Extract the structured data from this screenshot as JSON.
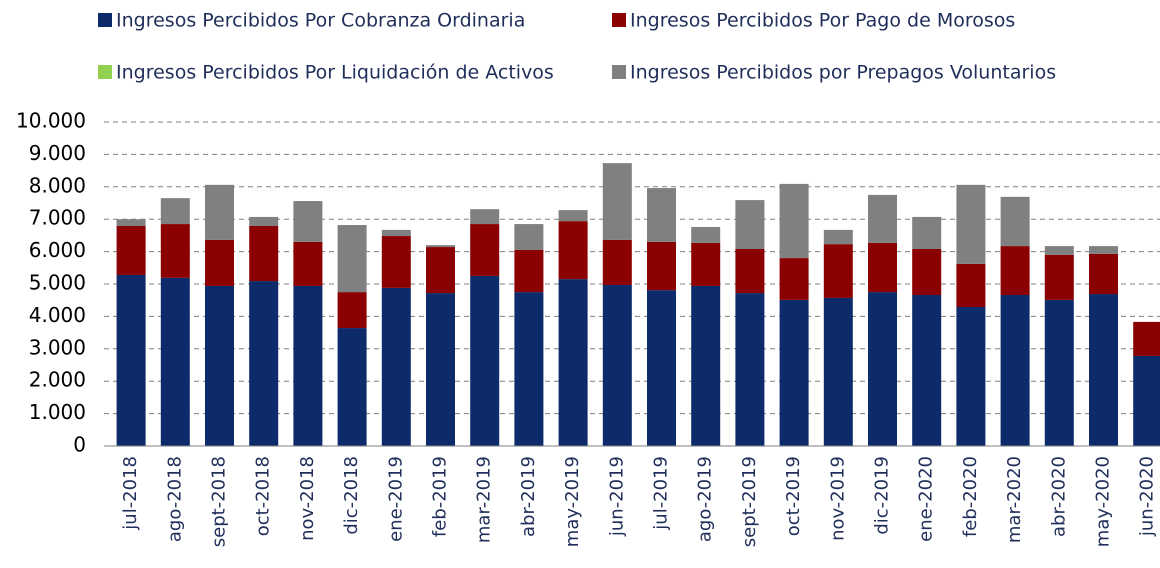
{
  "chart_data": {
    "type": "stacked_bar",
    "categories": [
      "jul-2018",
      "ago-2018",
      "sept-2018",
      "oct-2018",
      "nov-2018",
      "dic-2018",
      "ene-2019",
      "feb-2019",
      "mar-2019",
      "abr-2019",
      "may-2019",
      "jun-2019",
      "jul-2019",
      "ago-2019",
      "sept-2019",
      "oct-2019",
      "nov-2019",
      "dic-2019",
      "ene-2020",
      "feb-2020",
      "mar-2020",
      "abr-2020",
      "may-2020",
      "jun-2020"
    ],
    "series": [
      {
        "name": "Ingresos Percibidos Por Cobranza Ordinaria",
        "color": "#0d2a6b",
        "values": [
          5280,
          5190,
          4940,
          5090,
          4940,
          3640,
          4880,
          4720,
          5250,
          4750,
          5150,
          4970,
          4810,
          4940,
          4720,
          4510,
          4570,
          4750,
          4660,
          4290,
          4660,
          4510,
          4690,
          2780
        ]
      },
      {
        "name": "Ingresos Percibidos Por Pago de Morosos",
        "color": "#8b0000",
        "values": [
          1510,
          1660,
          1420,
          1700,
          1360,
          1110,
          1600,
          1420,
          1600,
          1300,
          1790,
          1390,
          1490,
          1330,
          1360,
          1290,
          1660,
          1520,
          1420,
          1330,
          1510,
          1390,
          1240,
          1050
        ]
      },
      {
        "name": "Ingresos Percibidos Por Liquidación de Activos",
        "color": "#92d050",
        "values": [
          0,
          0,
          0,
          0,
          0,
          0,
          0,
          0,
          0,
          0,
          0,
          0,
          0,
          0,
          0,
          0,
          0,
          0,
          0,
          0,
          0,
          0,
          0,
          0
        ]
      },
      {
        "name": "Ingresos Percibidos por Prepagos Voluntarios",
        "color": "#808080",
        "values": [
          210,
          800,
          1700,
          280,
          1260,
          2070,
          190,
          60,
          460,
          800,
          340,
          2370,
          1660,
          490,
          1510,
          2290,
          440,
          1480,
          990,
          2440,
          1520,
          270,
          240,
          0
        ]
      }
    ],
    "ylim": [
      0,
      10000
    ],
    "yticks": [
      0,
      {
        "value": 1000,
        "label": "1.000"
      },
      {
        "value": 2000,
        "label": "2.000"
      },
      {
        "value": 3000,
        "label": "3.000"
      },
      {
        "value": 4000,
        "label": "4.000"
      },
      {
        "value": 5000,
        "label": "5.000"
      },
      {
        "value": 6000,
        "label": "6.000"
      },
      {
        "value": 7000,
        "label": "7.000"
      },
      {
        "value": 8000,
        "label": "8.000"
      },
      {
        "value": 9000,
        "label": "9.000"
      },
      {
        "value": 10000,
        "label": "10.000"
      }
    ],
    "grid": true
  }
}
